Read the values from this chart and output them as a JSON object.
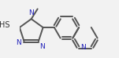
{
  "bg_color": "#f2f2f2",
  "bond_color": "#555555",
  "bond_width": 1.4,
  "figsize": [
    1.51,
    0.74
  ],
  "dpi": 100,
  "xlim": [
    -0.5,
    3.2
  ],
  "ylim": [
    -1.2,
    1.4
  ]
}
